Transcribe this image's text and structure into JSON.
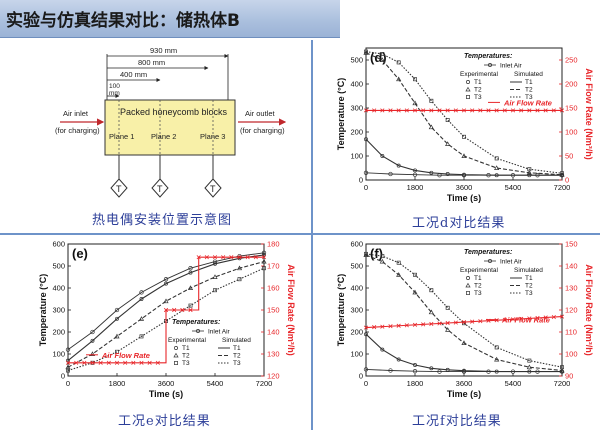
{
  "title": "实验与仿真结果对比：储热体B",
  "schematic": {
    "caption": "热电偶安装位置示意图",
    "dim_930": "930 mm",
    "dim_800": "800 mm",
    "dim_400": "400 mm",
    "dim_100": "100",
    "dim_100_unit": "mm",
    "block_label": "Packed honeycomb blocks",
    "plane1": "Plane 1",
    "plane2": "Plane 2",
    "plane3": "Plane 3",
    "air_inlet_1": "Air inlet",
    "air_inlet_2": "(for charging)",
    "air_outlet_1": "Air outlet",
    "air_outlet_2": "(for charging)",
    "thermocouple_symbol": "T"
  },
  "charts": {
    "d": {
      "panel_label": "(d)",
      "caption": "工况d对比结果",
      "y_ticks": [
        "0",
        "100",
        "200",
        "300",
        "400",
        "500"
      ],
      "y2_ticks": [
        "0",
        "50",
        "100",
        "150",
        "200",
        "250"
      ],
      "x_ticks": [
        "0",
        "1800",
        "3600",
        "5400",
        "7200"
      ],
      "flow_label": "Air Flow Rate"
    },
    "e": {
      "panel_label": "(e)",
      "caption": "工况e对比结果",
      "y_ticks": [
        "0",
        "100",
        "200",
        "300",
        "400",
        "500",
        "600"
      ],
      "y2_ticks": [
        "120",
        "130",
        "140",
        "150",
        "160",
        "170",
        "180"
      ],
      "x_ticks": [
        "0",
        "1800",
        "3600",
        "5400",
        "7200"
      ],
      "flow_label": "Air Flow Rate"
    },
    "f": {
      "panel_label": "(f)",
      "caption": "工况f对比结果",
      "y_ticks": [
        "0",
        "100",
        "200",
        "300",
        "400",
        "500",
        "600"
      ],
      "y2_ticks": [
        "90",
        "100",
        "110",
        "120",
        "130",
        "140",
        "150"
      ],
      "x_ticks": [
        "0",
        "1800",
        "3600",
        "5400",
        "7200"
      ],
      "flow_label": "Air Flow Rate"
    }
  },
  "axis_labels": {
    "x": "Time (s)",
    "y": "Temperature (°C)",
    "y2": "Air Flow Rate (Nm³/h)"
  },
  "legend": {
    "title": "Temperatures:",
    "inlet": "Inlet Air",
    "experimental": "Experimental",
    "simulated": "Simulated",
    "t1": "T1",
    "t2": "T2",
    "t3": "T3"
  },
  "colors": {
    "flow": "#e8262a",
    "curve": "#333333",
    "caption": "#2d3f99",
    "divider": "#6e93c9"
  },
  "chart_data": [
    {
      "type": "line",
      "panel": "(d)",
      "xlabel": "Time (s)",
      "ylabel": "Temperature (°C)",
      "y2label": "Air Flow Rate (Nm³/h)",
      "xlim": [
        0,
        7200
      ],
      "ylim": [
        0,
        550
      ],
      "y2lim": [
        0,
        275
      ],
      "series": [
        {
          "name": "Inlet Air",
          "axis": "left",
          "x": [
            0,
            900,
            1800,
            2700,
            3600,
            4500,
            5400,
            6300,
            7200
          ],
          "y": [
            30,
            25,
            22,
            20,
            20,
            20,
            20,
            20,
            20
          ]
        },
        {
          "name": "T1",
          "axis": "left",
          "x": [
            0,
            600,
            1200,
            1800,
            2400,
            3000,
            3600,
            4800,
            6000,
            7200
          ],
          "y": [
            170,
            100,
            60,
            40,
            30,
            25,
            22,
            20,
            20,
            20
          ]
        },
        {
          "name": "T2",
          "axis": "left",
          "x": [
            0,
            600,
            1200,
            1800,
            2400,
            3000,
            3600,
            4800,
            6000,
            7200
          ],
          "y": [
            530,
            500,
            420,
            320,
            220,
            150,
            100,
            50,
            30,
            22
          ]
        },
        {
          "name": "T3",
          "axis": "left",
          "x": [
            0,
            600,
            1200,
            1800,
            2400,
            3000,
            3600,
            4800,
            6000,
            7200
          ],
          "y": [
            535,
            525,
            490,
            420,
            330,
            250,
            180,
            90,
            45,
            28
          ]
        },
        {
          "name": "Air Flow Rate",
          "axis": "right",
          "x": [
            0,
            7200
          ],
          "y": [
            145,
            145
          ]
        }
      ]
    },
    {
      "type": "line",
      "panel": "(e)",
      "xlabel": "Time (s)",
      "ylabel": "Temperature (°C)",
      "y2label": "Air Flow Rate (Nm³/h)",
      "xlim": [
        0,
        7200
      ],
      "ylim": [
        0,
        600
      ],
      "y2lim": [
        120,
        180
      ],
      "series": [
        {
          "name": "Inlet Air",
          "axis": "left",
          "x": [
            0,
            900,
            1800,
            2700,
            3600,
            4500,
            5400,
            6300,
            7200
          ],
          "y": [
            120,
            200,
            300,
            380,
            440,
            490,
            520,
            545,
            560
          ]
        },
        {
          "name": "T1",
          "axis": "left",
          "x": [
            0,
            900,
            1800,
            2700,
            3600,
            4500,
            5400,
            6300,
            7200
          ],
          "y": [
            70,
            160,
            260,
            350,
            420,
            470,
            510,
            535,
            550
          ]
        },
        {
          "name": "T2",
          "axis": "left",
          "x": [
            0,
            900,
            1800,
            2700,
            3600,
            4500,
            5400,
            6300,
            7200
          ],
          "y": [
            40,
            100,
            180,
            260,
            340,
            400,
            450,
            490,
            520
          ]
        },
        {
          "name": "T3",
          "axis": "left",
          "x": [
            0,
            900,
            1800,
            2700,
            3600,
            4500,
            5400,
            6300,
            7200
          ],
          "y": [
            25,
            60,
            110,
            180,
            250,
            320,
            390,
            440,
            490
          ]
        },
        {
          "name": "Air Flow Rate",
          "axis": "right",
          "x": [
            0,
            1200,
            1200,
            3600,
            3600,
            4800,
            4800,
            7200
          ],
          "y": [
            126,
            126,
            126,
            126,
            150,
            150,
            174,
            174
          ]
        }
      ]
    },
    {
      "type": "line",
      "panel": "(f)",
      "xlabel": "Time (s)",
      "ylabel": "Temperature (°C)",
      "y2label": "Air Flow Rate (Nm³/h)",
      "xlim": [
        0,
        7200
      ],
      "ylim": [
        0,
        600
      ],
      "y2lim": [
        90,
        150
      ],
      "series": [
        {
          "name": "Inlet Air",
          "axis": "left",
          "x": [
            0,
            900,
            1800,
            2700,
            3600,
            4500,
            5400,
            6300,
            7200
          ],
          "y": [
            30,
            25,
            22,
            20,
            20,
            20,
            20,
            20,
            20
          ]
        },
        {
          "name": "T1",
          "axis": "left",
          "x": [
            0,
            600,
            1200,
            1800,
            2400,
            3000,
            3600,
            4800,
            6000,
            7200
          ],
          "y": [
            190,
            120,
            75,
            50,
            35,
            28,
            24,
            20,
            20,
            20
          ]
        },
        {
          "name": "T2",
          "axis": "left",
          "x": [
            0,
            600,
            1200,
            1800,
            2400,
            3000,
            3600,
            4800,
            6000,
            7200
          ],
          "y": [
            550,
            520,
            460,
            380,
            290,
            210,
            150,
            75,
            40,
            25
          ]
        },
        {
          "name": "T3",
          "axis": "left",
          "x": [
            0,
            600,
            1200,
            1800,
            2400,
            3000,
            3600,
            4800,
            6000,
            7200
          ],
          "y": [
            555,
            545,
            515,
            460,
            390,
            310,
            240,
            130,
            70,
            40
          ]
        },
        {
          "name": "Air Flow Rate",
          "axis": "right",
          "x": [
            0,
            7200
          ],
          "y": [
            112,
            117
          ]
        }
      ]
    }
  ]
}
